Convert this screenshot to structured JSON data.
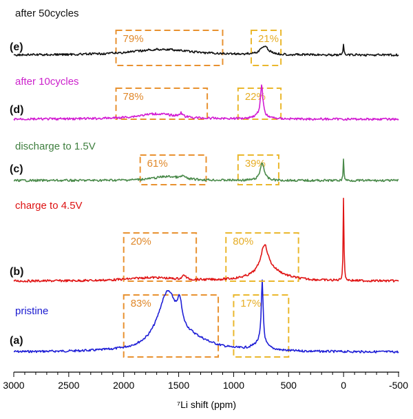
{
  "chart_data": {
    "type": "line",
    "title": "",
    "xlabel": "⁷Li shift (ppm)",
    "ylabel": "",
    "xlim": [
      3000,
      -500
    ],
    "x_ticks": [
      "3000",
      "2500",
      "2000",
      "1500",
      "1000",
      "500",
      "0",
      "-500"
    ],
    "x_tick_values": [
      3000,
      2500,
      2000,
      1500,
      1000,
      500,
      0,
      -500
    ],
    "grid": false,
    "series": [
      {
        "id": "a",
        "tag": "(a)",
        "name": "pristine",
        "color": "#1f1fd6",
        "label_color": "#1a1ad0",
        "peaks": [
          {
            "center": 1600,
            "width": 110,
            "height": 0.88
          },
          {
            "center": 1490,
            "width": 22,
            "height": 0.35
          },
          {
            "center": 1380,
            "width": 230,
            "height": 0.15
          },
          {
            "center": 740,
            "width": 10,
            "height": 1.0
          },
          {
            "center": 760,
            "width": 70,
            "height": 0.12
          }
        ],
        "boxes": [
          {
            "label": "83%",
            "from": 2000,
            "to": 1140
          },
          {
            "label": "17%",
            "from": 1000,
            "to": 500
          }
        ]
      },
      {
        "id": "b",
        "tag": "(b)",
        "name": "charge to 4.5V",
        "color": "#e01515",
        "label_color": "#dd1111",
        "peaks": [
          {
            "center": 1750,
            "width": 260,
            "height": 0.07
          },
          {
            "center": 1450,
            "width": 18,
            "height": 0.09
          },
          {
            "center": 720,
            "width": 40,
            "height": 0.55
          },
          {
            "center": 680,
            "width": 160,
            "height": 0.22
          },
          {
            "center": 0,
            "width": 4,
            "height": 1.8
          }
        ],
        "boxes": [
          {
            "label": "20%",
            "from": 2000,
            "to": 1340
          },
          {
            "label": "80%",
            "from": 1070,
            "to": 410
          }
        ]
      },
      {
        "id": "c",
        "tag": "(c)",
        "name": "discharge to 1.5V",
        "color": "#4a8a4a",
        "label_color": "#3f7f3f",
        "peaks": [
          {
            "center": 1600,
            "width": 160,
            "height": 0.1
          },
          {
            "center": 1460,
            "width": 18,
            "height": 0.07
          },
          {
            "center": 740,
            "width": 22,
            "height": 0.45
          },
          {
            "center": 0,
            "width": 4,
            "height": 0.55
          }
        ],
        "boxes": [
          {
            "label": "61%",
            "from": 1850,
            "to": 1250
          },
          {
            "label": "39%",
            "from": 960,
            "to": 590
          }
        ]
      },
      {
        "id": "d",
        "tag": "(d)",
        "name": "after 10cycles",
        "color": "#d21bd2",
        "label_color": "#cc22cc",
        "peaks": [
          {
            "center": 1700,
            "width": 220,
            "height": 0.13
          },
          {
            "center": 1480,
            "width": 18,
            "height": 0.09
          },
          {
            "center": 745,
            "width": 13,
            "height": 0.75
          },
          {
            "center": 760,
            "width": 70,
            "height": 0.08
          }
        ],
        "boxes": [
          {
            "label": "78%",
            "from": 2070,
            "to": 1240
          },
          {
            "label": "22%",
            "from": 960,
            "to": 570
          }
        ]
      },
      {
        "id": "e",
        "tag": "(e)",
        "name": "after 50cycles",
        "color": "#111111",
        "label_color": "#111111",
        "peaks": [
          {
            "center": 1650,
            "width": 320,
            "height": 0.14
          },
          {
            "center": 720,
            "width": 45,
            "height": 0.2
          },
          {
            "center": 0,
            "width": 4,
            "height": 0.28
          }
        ],
        "boxes": [
          {
            "label": "79%",
            "from": 2070,
            "to": 1100
          },
          {
            "label": "21%",
            "from": 840,
            "to": 570
          }
        ]
      }
    ]
  }
}
